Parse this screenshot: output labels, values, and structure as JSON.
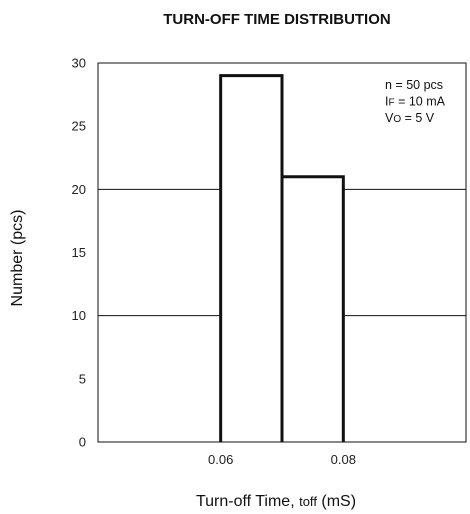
{
  "chart_data": {
    "type": "bar",
    "title": "TURN-OFF TIME DISTRIBUTION",
    "xlabel": {
      "main": "Turn-off Time, ",
      "sub": "toff",
      "unit": " (mS)"
    },
    "ylabel": "Number (pcs)",
    "xlim": [
      0.04,
      0.1
    ],
    "ylim": [
      0,
      30
    ],
    "x_ticks": [
      0.06,
      0.08
    ],
    "x_tick_labels": [
      "0.06",
      "0.08"
    ],
    "y_ticks": [
      0,
      5,
      10,
      15,
      20,
      25,
      30
    ],
    "y_tick_labels": [
      "0",
      "5",
      "10",
      "15",
      "20",
      "25",
      "30"
    ],
    "gridlines_y": [
      10,
      20
    ],
    "bins": [
      {
        "x_start": 0.06,
        "x_end": 0.07,
        "value": 29
      },
      {
        "x_start": 0.07,
        "x_end": 0.08,
        "value": 21
      }
    ],
    "annotations": [
      {
        "main": "n = 50 pcs",
        "sub": "",
        "tail": ""
      },
      {
        "main": "I",
        "sub": "F",
        "tail": " = 10 mA"
      },
      {
        "main": "V",
        "sub": "O",
        "tail": " = 5 V"
      }
    ]
  }
}
